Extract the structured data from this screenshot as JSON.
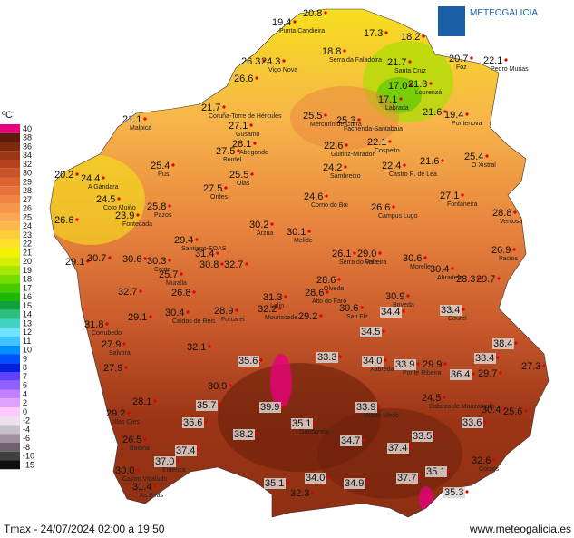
{
  "header": {
    "brand": "METEOGALICIA"
  },
  "legend": {
    "unit": "ºC",
    "items": [
      {
        "label": "40",
        "color": "#e8007c"
      },
      {
        "label": "38",
        "color": "#5c1a08"
      },
      {
        "label": "36",
        "color": "#7d2a0c"
      },
      {
        "label": "34",
        "color": "#9c3516"
      },
      {
        "label": "32",
        "color": "#b5421f"
      },
      {
        "label": "30",
        "color": "#c9532a"
      },
      {
        "label": "29",
        "color": "#dc6433"
      },
      {
        "label": "28",
        "color": "#e8733a"
      },
      {
        "label": "27",
        "color": "#f08443"
      },
      {
        "label": "26",
        "color": "#f6954c"
      },
      {
        "label": "25",
        "color": "#fba655"
      },
      {
        "label": "24",
        "color": "#ffb94a"
      },
      {
        "label": "23",
        "color": "#ffcd3a"
      },
      {
        "label": "22",
        "color": "#ffe12a"
      },
      {
        "label": "21",
        "color": "#f5f200"
      },
      {
        "label": "20",
        "color": "#d4ef00"
      },
      {
        "label": "19",
        "color": "#a8e600"
      },
      {
        "label": "18",
        "color": "#78dc00"
      },
      {
        "label": "17",
        "color": "#48cc00"
      },
      {
        "label": "16",
        "color": "#1eb800"
      },
      {
        "label": "15",
        "color": "#10a040"
      },
      {
        "label": "14",
        "color": "#2cbf80"
      },
      {
        "label": "13",
        "color": "#40d4c4"
      },
      {
        "label": "12",
        "color": "#70e4ff"
      },
      {
        "label": "11",
        "color": "#40c4ff"
      },
      {
        "label": "10",
        "color": "#0090ff"
      },
      {
        "label": "9",
        "color": "#0050ff"
      },
      {
        "label": "8",
        "color": "#0020e0"
      },
      {
        "label": "7",
        "color": "#6040ff"
      },
      {
        "label": "6",
        "color": "#9060ff"
      },
      {
        "label": "4",
        "color": "#c080ff"
      },
      {
        "label": "2",
        "color": "#e0a0ff"
      },
      {
        "label": "0",
        "color": "#ffc8ff"
      },
      {
        "label": "-2",
        "color": "#eee0ee"
      },
      {
        "label": "-4",
        "color": "#c8c0c8"
      },
      {
        "label": "-6",
        "color": "#a090a0"
      },
      {
        "label": "-8",
        "color": "#706070"
      },
      {
        "label": "-10",
        "color": "#404040"
      },
      {
        "label": "-15",
        "color": "#101010"
      }
    ]
  },
  "stations": [
    {
      "value": "19.4",
      "name": "Punta Candieira"
    },
    {
      "value": "20.8"
    },
    {
      "value": "17.3"
    },
    {
      "value": "18.2"
    },
    {
      "value": "18.8",
      "name": "Serra da Faladoira"
    },
    {
      "value": "26.3"
    },
    {
      "value": "24.3",
      "name": "Vigo Nova"
    },
    {
      "value": "21.7",
      "name": "Santa Cruz"
    },
    {
      "value": "20.7",
      "name": "Foz"
    },
    {
      "value": "22.1",
      "name": "Pedro Murias"
    },
    {
      "value": "26.6"
    },
    {
      "value": "17.0"
    },
    {
      "value": "21.3",
      "name": "Lourenzá"
    },
    {
      "value": "17.1",
      "name": "Labrada"
    },
    {
      "value": "21.7",
      "name": "Coruña-Torre de Hércules"
    },
    {
      "value": "21.6"
    },
    {
      "value": "19.4",
      "name": "Pontenova"
    },
    {
      "value": "21.1",
      "name": "Malpica"
    },
    {
      "value": "25.5",
      "name": "Mercurín de Curra"
    },
    {
      "value": "25.3",
      "name": "Fachenda-Santabaia"
    },
    {
      "value": "27.1",
      "name": "Gusamo"
    },
    {
      "value": "28.1",
      "name": "Abegondo"
    },
    {
      "value": "27.5",
      "name": "Bordel"
    },
    {
      "value": "22.6",
      "name": "Guitiriz-Mirador"
    },
    {
      "value": "22.1",
      "name": "Cospeito"
    },
    {
      "value": "25.4",
      "name": "Rus"
    },
    {
      "value": "24.2",
      "name": "Sambreixo"
    },
    {
      "value": "22.4",
      "name": "Castro R. de Lea"
    },
    {
      "value": "21.6"
    },
    {
      "value": "25.4",
      "name": "O Xistral"
    },
    {
      "value": "20.2"
    },
    {
      "value": "24.4",
      "name": "A Gándara"
    },
    {
      "value": "25.5",
      "name": "Olas"
    },
    {
      "value": "27.5",
      "name": "Ordes"
    },
    {
      "value": "24.5",
      "name": "Coto Muiño"
    },
    {
      "value": "25.8",
      "name": "Pazos"
    },
    {
      "value": "24.6",
      "name": "Corno do Boi"
    },
    {
      "value": "26.6",
      "name": "Campus Lugo"
    },
    {
      "value": "27.1",
      "name": "Fontaneira"
    },
    {
      "value": "23.9",
      "name": "Fontecada"
    },
    {
      "value": "28.8",
      "name": "Ventosa"
    },
    {
      "value": "26.6"
    },
    {
      "value": "30.2",
      "name": "Arzúa"
    },
    {
      "value": "30.1",
      "name": "Melide"
    },
    {
      "value": "29.4",
      "name": "Santiago-EOAS"
    },
    {
      "value": "26.1",
      "name": "Serra do Vale"
    },
    {
      "value": "29.0",
      "name": "Ferreira"
    },
    {
      "value": "26.9",
      "name": "Pacios"
    },
    {
      "value": "29.1"
    },
    {
      "value": "30.7"
    },
    {
      "value": "30.6"
    },
    {
      "value": "30.3",
      "name": "Costa"
    },
    {
      "value": "31.4"
    },
    {
      "value": "30.8"
    },
    {
      "value": "32.7"
    },
    {
      "value": "30.6",
      "name": "Morelle"
    },
    {
      "value": "30.4",
      "name": "Abradelo"
    },
    {
      "value": "28.3"
    },
    {
      "value": "29.7"
    },
    {
      "value": "25.7",
      "name": "Muralla"
    },
    {
      "value": "28.6",
      "name": "Olveda"
    },
    {
      "value": "32.7"
    },
    {
      "value": "26.8"
    },
    {
      "value": "31.3",
      "name": "Lalín"
    },
    {
      "value": "28.6",
      "name": "Alto do Faro"
    },
    {
      "value": "30.9",
      "name": "Boveda"
    },
    {
      "value": "33.4",
      "name": "Courel"
    },
    {
      "value": "29.1"
    },
    {
      "value": "30.4",
      "name": "Caldas de Reis"
    },
    {
      "value": "28.9",
      "name": "Forcarei"
    },
    {
      "value": "32.2",
      "name": "Mouriscade"
    },
    {
      "value": "29.2"
    },
    {
      "value": "30.6",
      "name": "San Fiz"
    },
    {
      "value": "31.8",
      "name": "Corrubedo"
    },
    {
      "value": "34.5"
    },
    {
      "value": "34.4"
    },
    {
      "value": "35.6"
    },
    {
      "value": "33.3"
    },
    {
      "value": "34.0",
      "name": "Xabreda"
    },
    {
      "value": "33.9",
      "name": "Ponte Ribeira"
    },
    {
      "value": "29.9"
    },
    {
      "value": "36.4"
    },
    {
      "value": "29.7"
    },
    {
      "value": "27.3"
    },
    {
      "value": "38.4"
    },
    {
      "value": "38.4"
    },
    {
      "value": "39.9"
    },
    {
      "value": "35.1",
      "name": "Gandarela"
    },
    {
      "value": "33.9",
      "name": "Monte Medo"
    },
    {
      "value": "24.5",
      "name": "Cabeza de Manzaneda"
    },
    {
      "value": "33.6"
    },
    {
      "value": "30.4"
    },
    {
      "value": "25.6"
    },
    {
      "value": "36.6"
    },
    {
      "value": "37.4"
    },
    {
      "value": "37.0",
      "name": "Entenza"
    },
    {
      "value": "26.5",
      "name": "Baiona"
    },
    {
      "value": "30.0",
      "name": "Castro Vicaludo"
    },
    {
      "value": "31.4",
      "name": "As Eiras"
    },
    {
      "value": "38.2"
    },
    {
      "value": "34.7"
    },
    {
      "value": "37.4"
    },
    {
      "value": "33.5"
    },
    {
      "value": "32.6",
      "name": "Corzos"
    },
    {
      "value": "34.0"
    },
    {
      "value": "34.9"
    },
    {
      "value": "37.7"
    },
    {
      "value": "35.1"
    },
    {
      "value": "35.3"
    },
    {
      "value": "35.1"
    },
    {
      "value": "32.3"
    },
    {
      "value": "29.2",
      "name": "Illas Cíes"
    },
    {
      "value": "28.1"
    },
    {
      "value": "27.9",
      "name": "Salvora"
    },
    {
      "value": "27.9"
    },
    {
      "value": "32.1"
    },
    {
      "value": "30.9"
    },
    {
      "value": "35.7"
    }
  ],
  "footer": {
    "caption": "Tmax - 24/07/2024 02:00 a 19:50",
    "url": "www.meteogalicia.es"
  }
}
